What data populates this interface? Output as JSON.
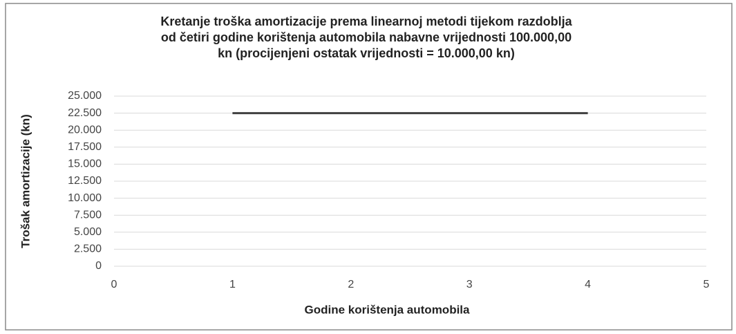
{
  "chart_data": {
    "type": "line",
    "title": "Kretanje troška amortizacije  prema linearnoj  metodi tijekom razdoblja\nod četiri godine korištenja automobila  nabavne vrijednosti 100.000,00\nkn (procijenjeni  ostatak vrijednosti = 10.000,00 kn)",
    "x_label": "Godine korištenja automobila",
    "y_label": "Trošak amortizacije (kn)",
    "x": [
      1,
      2,
      3,
      4
    ],
    "values": [
      22500,
      22500,
      22500,
      22500
    ],
    "color": "#404040",
    "xlim": [
      0,
      5
    ],
    "xticks": [
      0,
      1,
      2,
      3,
      4,
      5
    ],
    "ylim": [
      0,
      25000
    ],
    "yticks": [
      0,
      {
        "value": 2500,
        "label": "2.500"
      },
      {
        "value": 5000,
        "label": "5.000"
      },
      {
        "value": 7500,
        "label": "7.500"
      },
      {
        "value": 10000,
        "label": "10.000"
      },
      {
        "value": 12500,
        "label": "12.500"
      },
      {
        "value": 15000,
        "label": "15.000"
      },
      {
        "value": 17500,
        "label": "17.500"
      },
      {
        "value": 20000,
        "label": "20.000"
      },
      {
        "value": 22500,
        "label": "22.500"
      },
      {
        "value": 25000,
        "label": "25.000"
      }
    ],
    "grid": true
  }
}
